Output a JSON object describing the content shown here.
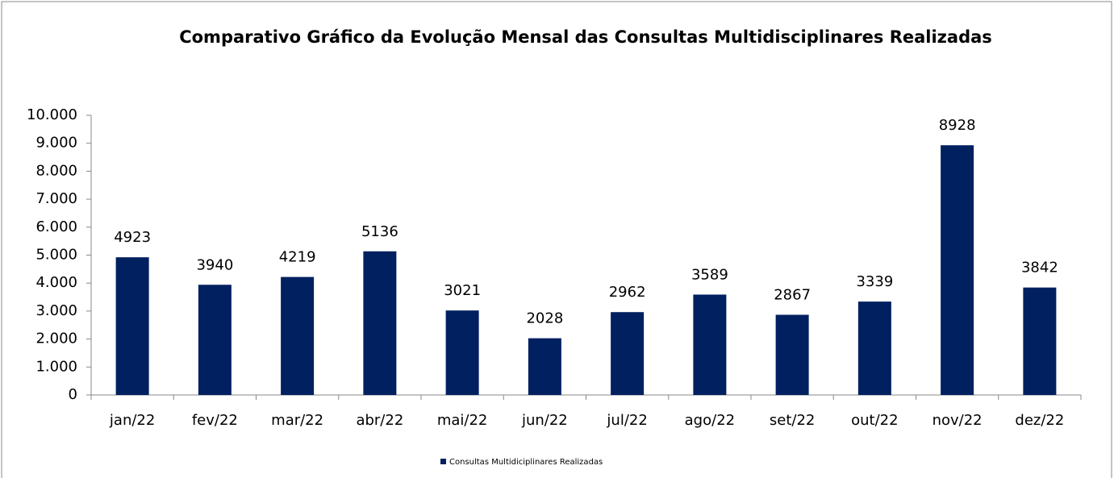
{
  "chart_data": {
    "type": "bar",
    "title": "Comparativo Gráfico da Evolução Mensal das Consultas Multidisciplinares Realizadas",
    "categories": [
      "jan/22",
      "fev/22",
      "mar/22",
      "abr/22",
      "mai/22",
      "jun/22",
      "jul/22",
      "ago/22",
      "set/22",
      "out/22",
      "nov/22",
      "dez/22"
    ],
    "series": [
      {
        "name": "Consultas Multidiciplinares Realizadas",
        "color": "#002060",
        "values": [
          4923,
          3940,
          4219,
          5136,
          3021,
          2028,
          2962,
          3589,
          2867,
          3339,
          8928,
          3842
        ]
      }
    ],
    "ylim": [
      0,
      10000
    ],
    "yticks": [
      0,
      {
        "value": 1000,
        "label": "1.000"
      },
      {
        "value": 2000,
        "label": "2.000"
      },
      {
        "value": 3000,
        "label": "3.000"
      },
      {
        "value": 4000,
        "label": "4.000"
      },
      {
        "value": 5000,
        "label": "5.000"
      },
      {
        "value": 6000,
        "label": "6.000"
      },
      {
        "value": 7000,
        "label": "7.000"
      },
      {
        "value": 8000,
        "label": "8.000"
      },
      {
        "value": 9000,
        "label": "9.000"
      },
      {
        "value": 10000,
        "label": "10.000"
      }
    ],
    "grid": false,
    "legend": "bottom"
  }
}
